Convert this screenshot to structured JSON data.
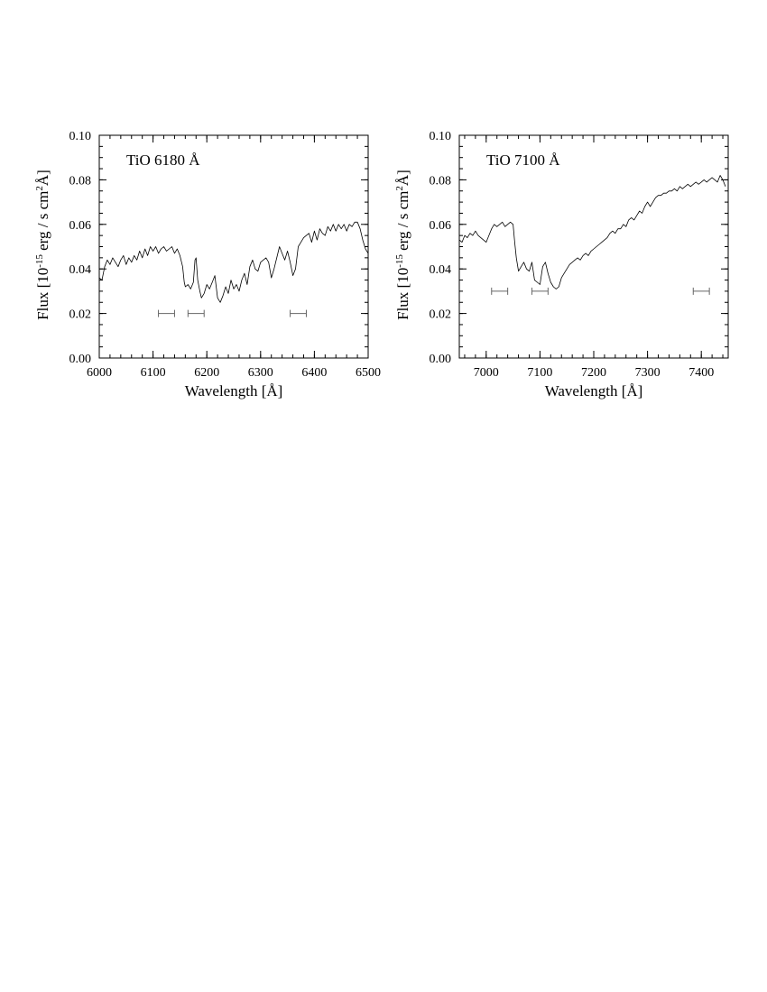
{
  "chart_data": [
    {
      "type": "line",
      "title": "TiO 6180 Å",
      "xlabel": "Wavelength [Å]",
      "ylabel_parts": [
        "Flux [10",
        "-15",
        " erg / s cm",
        "2",
        "Å]"
      ],
      "xlim": [
        6000,
        6500
      ],
      "ylim": [
        0.0,
        0.1
      ],
      "xticks": [
        6000,
        6100,
        6200,
        6300,
        6400,
        6500
      ],
      "xtick_labels": [
        "6000",
        "6100",
        "6200",
        "6300",
        "6400",
        "6500"
      ],
      "yticks": [
        0.0,
        0.02,
        0.04,
        0.06,
        0.08,
        0.1
      ],
      "ytick_labels": [
        "0.00",
        "0.02",
        "0.04",
        "0.06",
        "0.08",
        "0.10"
      ],
      "series": [
        {
          "x": [
            6000,
            6005,
            6010,
            6015,
            6020,
            6025,
            6030,
            6035,
            6040,
            6045,
            6050,
            6055,
            6060,
            6065,
            6070,
            6075,
            6080,
            6085,
            6090,
            6095,
            6100,
            6105,
            6110,
            6115,
            6120,
            6125,
            6130,
            6135,
            6140,
            6145,
            6150,
            6155,
            6158,
            6160,
            6165,
            6170,
            6175,
            6178,
            6180,
            6183,
            6187,
            6190,
            6195,
            6200,
            6205,
            6210,
            6215,
            6220,
            6225,
            6230,
            6235,
            6240,
            6245,
            6250,
            6255,
            6260,
            6265,
            6270,
            6275,
            6280,
            6285,
            6290,
            6295,
            6300,
            6305,
            6310,
            6315,
            6320,
            6325,
            6330,
            6335,
            6340,
            6345,
            6350,
            6355,
            6360,
            6365,
            6370,
            6375,
            6380,
            6385,
            6390,
            6395,
            6400,
            6405,
            6410,
            6415,
            6420,
            6425,
            6430,
            6435,
            6440,
            6445,
            6450,
            6455,
            6460,
            6465,
            6470,
            6475,
            6480,
            6485,
            6490,
            6495,
            6500
          ],
          "y": [
            0.036,
            0.035,
            0.041,
            0.044,
            0.042,
            0.045,
            0.043,
            0.041,
            0.044,
            0.046,
            0.042,
            0.045,
            0.043,
            0.046,
            0.044,
            0.048,
            0.045,
            0.049,
            0.046,
            0.05,
            0.048,
            0.05,
            0.047,
            0.049,
            0.05,
            0.048,
            0.049,
            0.05,
            0.047,
            0.049,
            0.046,
            0.041,
            0.034,
            0.032,
            0.033,
            0.031,
            0.034,
            0.044,
            0.045,
            0.035,
            0.03,
            0.027,
            0.029,
            0.033,
            0.031,
            0.034,
            0.037,
            0.027,
            0.025,
            0.028,
            0.032,
            0.029,
            0.035,
            0.031,
            0.033,
            0.03,
            0.035,
            0.038,
            0.033,
            0.041,
            0.044,
            0.04,
            0.039,
            0.043,
            0.044,
            0.045,
            0.043,
            0.036,
            0.04,
            0.045,
            0.05,
            0.047,
            0.044,
            0.048,
            0.043,
            0.037,
            0.04,
            0.05,
            0.052,
            0.054,
            0.055,
            0.056,
            0.052,
            0.057,
            0.053,
            0.058,
            0.056,
            0.055,
            0.059,
            0.057,
            0.06,
            0.057,
            0.06,
            0.058,
            0.06,
            0.057,
            0.06,
            0.059,
            0.061,
            0.061,
            0.058,
            0.053,
            0.049,
            0.047
          ]
        }
      ],
      "bands": [
        [
          6110,
          6140
        ],
        [
          6165,
          6195
        ],
        [
          6355,
          6385
        ]
      ],
      "band_y": 0.02
    },
    {
      "type": "line",
      "title": "TiO 7100 Å",
      "xlabel": "Wavelength [Å]",
      "ylabel_parts": [
        "Flux [10",
        "-15",
        " erg / s cm",
        "2",
        "Å]"
      ],
      "xlim": [
        6950,
        7450
      ],
      "ylim": [
        0.0,
        0.1
      ],
      "xticks": [
        7000,
        7100,
        7200,
        7300,
        7400
      ],
      "xtick_labels": [
        "7000",
        "7100",
        "7200",
        "7300",
        "7400"
      ],
      "yticks": [
        0.0,
        0.02,
        0.04,
        0.06,
        0.08,
        0.1
      ],
      "ytick_labels": [
        "0.00",
        "0.02",
        "0.04",
        "0.06",
        "0.08",
        "0.10"
      ],
      "series": [
        {
          "x": [
            6950,
            6955,
            6960,
            6965,
            6970,
            6975,
            6980,
            6985,
            6990,
            6995,
            7000,
            7005,
            7010,
            7015,
            7020,
            7025,
            7030,
            7035,
            7040,
            7045,
            7050,
            7053,
            7056,
            7060,
            7065,
            7070,
            7075,
            7080,
            7085,
            7090,
            7095,
            7100,
            7105,
            7110,
            7115,
            7120,
            7125,
            7130,
            7135,
            7140,
            7145,
            7150,
            7155,
            7160,
            7165,
            7170,
            7175,
            7180,
            7185,
            7190,
            7195,
            7200,
            7205,
            7210,
            7215,
            7220,
            7225,
            7230,
            7235,
            7240,
            7245,
            7250,
            7255,
            7260,
            7265,
            7270,
            7275,
            7280,
            7285,
            7290,
            7295,
            7300,
            7305,
            7310,
            7315,
            7320,
            7325,
            7330,
            7335,
            7340,
            7345,
            7350,
            7355,
            7360,
            7365,
            7370,
            7375,
            7380,
            7385,
            7390,
            7395,
            7400,
            7405,
            7410,
            7415,
            7420,
            7425,
            7430,
            7435,
            7440,
            7445,
            7450
          ],
          "y": [
            0.053,
            0.052,
            0.055,
            0.054,
            0.056,
            0.055,
            0.057,
            0.055,
            0.054,
            0.053,
            0.052,
            0.055,
            0.058,
            0.06,
            0.059,
            0.06,
            0.061,
            0.059,
            0.06,
            0.061,
            0.06,
            0.052,
            0.045,
            0.039,
            0.041,
            0.043,
            0.04,
            0.039,
            0.043,
            0.035,
            0.034,
            0.033,
            0.041,
            0.043,
            0.038,
            0.034,
            0.032,
            0.031,
            0.032,
            0.036,
            0.038,
            0.04,
            0.042,
            0.043,
            0.044,
            0.045,
            0.044,
            0.046,
            0.047,
            0.046,
            0.048,
            0.049,
            0.05,
            0.051,
            0.052,
            0.053,
            0.054,
            0.056,
            0.057,
            0.056,
            0.058,
            0.058,
            0.06,
            0.059,
            0.062,
            0.063,
            0.062,
            0.064,
            0.066,
            0.065,
            0.068,
            0.07,
            0.068,
            0.07,
            0.072,
            0.073,
            0.073,
            0.074,
            0.074,
            0.075,
            0.075,
            0.076,
            0.075,
            0.077,
            0.076,
            0.077,
            0.078,
            0.077,
            0.078,
            0.079,
            0.078,
            0.079,
            0.08,
            0.079,
            0.08,
            0.081,
            0.08,
            0.079,
            0.082,
            0.08,
            0.077,
            0.078
          ],
          "line_end_x": 7445
        }
      ],
      "bands": [
        [
          7010,
          7040
        ],
        [
          7085,
          7115
        ],
        [
          7385,
          7415
        ]
      ],
      "band_y": 0.03
    }
  ]
}
